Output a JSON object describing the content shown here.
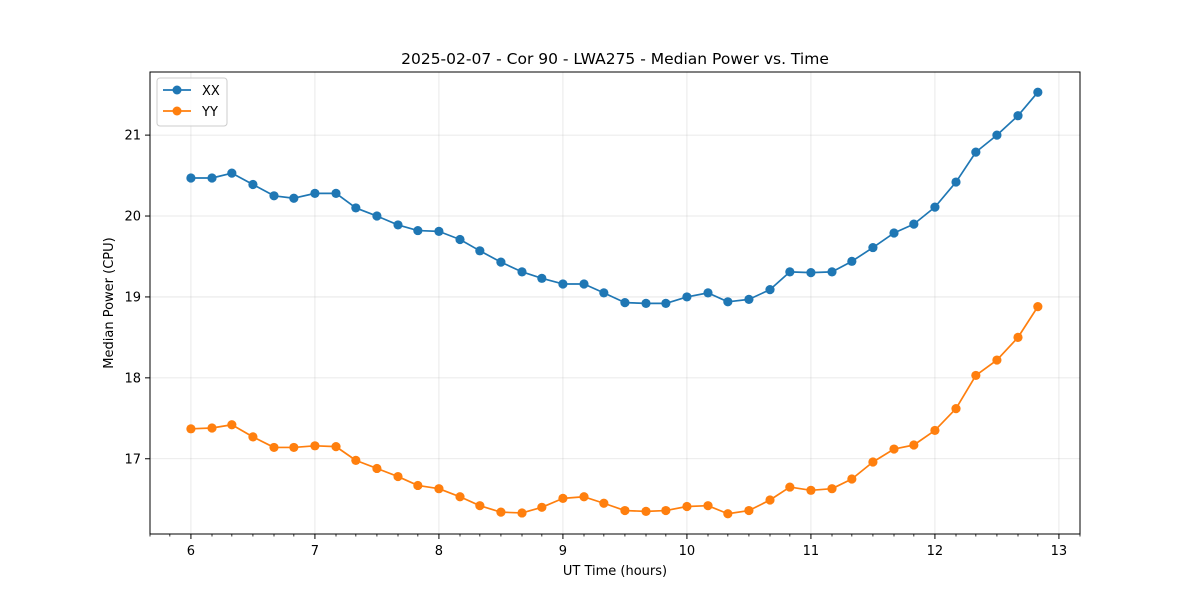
{
  "chart_data": {
    "type": "line",
    "title": "2025-02-07 - Cor 90 - LWA275 - Median Power vs. Time",
    "xlabel": "UT Time (hours)",
    "ylabel": "Median Power (CPU)",
    "xlim": [
      5.67,
      13.17
    ],
    "ylim": [
      16.07,
      21.78
    ],
    "xticks": [
      6,
      7,
      8,
      9,
      10,
      11,
      12,
      13
    ],
    "yticks": [
      17,
      18,
      19,
      20,
      21
    ],
    "x_minor_ticks": [
      5.67,
      5.83,
      6.17,
      6.33,
      6.5,
      6.67,
      6.83,
      7.17,
      7.33,
      7.5,
      7.67,
      7.83,
      8.17,
      8.33,
      8.5,
      8.67,
      8.83,
      9.17,
      9.33,
      9.5,
      9.67,
      9.83,
      10.17,
      10.33,
      10.5,
      10.67,
      10.83,
      11.17,
      11.33,
      11.5,
      11.67,
      11.83,
      12.17,
      12.33,
      12.5,
      12.67,
      12.83,
      13.17
    ],
    "grid": true,
    "legend_position": "top-left",
    "x": [
      6.0,
      6.17,
      6.33,
      6.5,
      6.67,
      6.83,
      7.0,
      7.17,
      7.33,
      7.5,
      7.67,
      7.83,
      8.0,
      8.17,
      8.33,
      8.5,
      8.67,
      8.83,
      9.0,
      9.17,
      9.33,
      9.5,
      9.67,
      9.83,
      10.0,
      10.17,
      10.33,
      10.5,
      10.67,
      10.83,
      11.0,
      11.17,
      11.33,
      11.5,
      11.67,
      11.83,
      12.0,
      12.17,
      12.33,
      12.5,
      12.67,
      12.83
    ],
    "series": [
      {
        "name": "XX",
        "color": "#1f77b4",
        "values": [
          20.47,
          20.47,
          20.53,
          20.39,
          20.25,
          20.22,
          20.28,
          20.28,
          20.1,
          20.0,
          19.89,
          19.82,
          19.81,
          19.71,
          19.57,
          19.43,
          19.31,
          19.23,
          19.16,
          19.16,
          19.05,
          18.93,
          18.92,
          18.92,
          19.0,
          19.05,
          18.94,
          18.97,
          19.09,
          19.31,
          19.3,
          19.31,
          19.44,
          19.61,
          19.79,
          19.9,
          20.11,
          20.42,
          20.79,
          21.0,
          21.24,
          21.53
        ]
      },
      {
        "name": "YY",
        "color": "#ff7f0e",
        "values": [
          17.37,
          17.38,
          17.42,
          17.27,
          17.14,
          17.14,
          17.16,
          17.15,
          16.98,
          16.88,
          16.78,
          16.67,
          16.63,
          16.53,
          16.42,
          16.34,
          16.33,
          16.4,
          16.51,
          16.53,
          16.45,
          16.36,
          16.35,
          16.36,
          16.41,
          16.42,
          16.32,
          16.36,
          16.49,
          16.65,
          16.61,
          16.63,
          16.75,
          16.96,
          17.12,
          17.17,
          17.35,
          17.62,
          18.03,
          18.22,
          18.5,
          18.88
        ]
      }
    ]
  }
}
